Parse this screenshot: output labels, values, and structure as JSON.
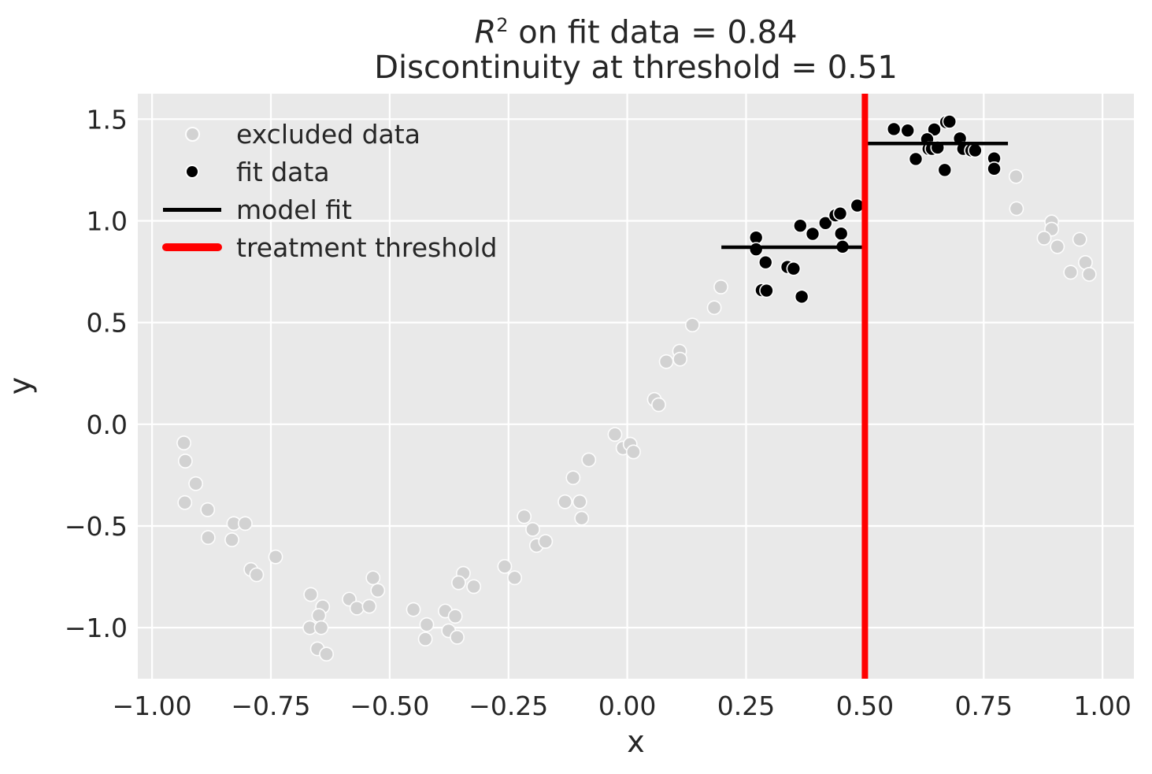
{
  "title": {
    "r_symbol": "R",
    "r_sup": "2",
    "line1_rest": " on fit data = 0.84",
    "line2": "Discontinuity at threshold = 0.51"
  },
  "axes": {
    "xlabel": "x",
    "ylabel": "y"
  },
  "legend": {
    "items": [
      {
        "label": "excluded data",
        "marker": "dot",
        "color": "#d2d2d2"
      },
      {
        "label": "fit data",
        "marker": "dot",
        "color": "#000000"
      },
      {
        "label": "model fit",
        "marker": "line",
        "color": "#000000"
      },
      {
        "label": "treatment threshold",
        "marker": "thick-line",
        "color": "#ff0000"
      }
    ],
    "position": "upper left"
  },
  "colors": {
    "figure_bg": "#ffffff",
    "plot_bg": "#e9e9e9",
    "grid": "#ffffff",
    "text": "#262626",
    "excluded": "#d2d2d2",
    "fit": "#000000",
    "model_fit": "#000000",
    "threshold": "#ff0000",
    "marker_edge": "#fdfdfd"
  },
  "chart_data": {
    "type": "scatter",
    "title": "R^2 on fit data = 0.84\nDiscontinuity at threshold = 0.51",
    "xlabel": "x",
    "ylabel": "y",
    "xlim": [
      -1.03,
      1.066
    ],
    "ylim": [
      -1.251,
      1.625
    ],
    "grid": true,
    "legend_position": "upper left",
    "x_ticks": {
      "values": [
        -1.0,
        -0.75,
        -0.5,
        -0.25,
        0.0,
        0.25,
        0.5,
        0.75,
        1.0
      ],
      "labels": [
        "−1.00",
        "−0.75",
        "−0.50",
        "−0.25",
        "0.00",
        "0.25",
        "0.50",
        "0.75",
        "1.00"
      ]
    },
    "y_ticks": {
      "values": [
        1.5,
        1.0,
        0.5,
        0.0,
        -0.5,
        -1.0
      ],
      "labels": [
        "1.5",
        "1.0",
        "0.5",
        "0.0",
        "−0.5",
        "−1.0"
      ]
    },
    "annotations": {
      "r2_on_fit_data": 0.84,
      "discontinuity_at_threshold": 0.51
    },
    "series": [
      {
        "name": "excluded data",
        "kind": "scatter",
        "color": "#d2d2d2",
        "edge_color": "#fdfdfd",
        "marker_radius": 8.6,
        "points": [
          [
            -0.933,
            -0.092
          ],
          [
            -0.93,
            -0.181
          ],
          [
            -0.908,
            -0.292
          ],
          [
            -0.931,
            -0.385
          ],
          [
            -0.883,
            -0.42
          ],
          [
            -0.828,
            -0.488
          ],
          [
            -0.804,
            -0.488
          ],
          [
            -0.882,
            -0.557
          ],
          [
            -0.832,
            -0.568
          ],
          [
            -0.74,
            -0.652
          ],
          [
            -0.792,
            -0.714
          ],
          [
            -0.78,
            -0.74
          ],
          [
            -0.666,
            -0.837
          ],
          [
            -0.641,
            -0.897
          ],
          [
            -0.649,
            -0.94
          ],
          [
            -0.668,
            -1.0
          ],
          [
            -0.644,
            -1.0
          ],
          [
            -0.652,
            -1.104
          ],
          [
            -0.633,
            -1.13
          ],
          [
            -0.585,
            -0.86
          ],
          [
            -0.569,
            -0.904
          ],
          [
            -0.535,
            -0.755
          ],
          [
            -0.525,
            -0.817
          ],
          [
            -0.543,
            -0.895
          ],
          [
            -0.45,
            -0.911
          ],
          [
            -0.422,
            -0.985
          ],
          [
            -0.425,
            -1.056
          ],
          [
            -0.383,
            -0.918
          ],
          [
            -0.362,
            -0.944
          ],
          [
            -0.376,
            -1.015
          ],
          [
            -0.358,
            -1.047
          ],
          [
            -0.345,
            -0.733
          ],
          [
            -0.355,
            -0.779
          ],
          [
            -0.323,
            -0.798
          ],
          [
            -0.258,
            -0.699
          ],
          [
            -0.237,
            -0.755
          ],
          [
            -0.217,
            -0.454
          ],
          [
            -0.199,
            -0.517
          ],
          [
            -0.191,
            -0.596
          ],
          [
            -0.172,
            -0.576
          ],
          [
            -0.114,
            -0.263
          ],
          [
            -0.131,
            -0.381
          ],
          [
            -0.1,
            -0.381
          ],
          [
            -0.096,
            -0.462
          ],
          [
            -0.081,
            -0.175
          ],
          [
            -0.026,
            -0.05
          ],
          [
            -0.009,
            -0.117
          ],
          [
            0.006,
            -0.098
          ],
          [
            0.013,
            -0.136
          ],
          [
            0.057,
            0.122
          ],
          [
            0.066,
            0.096
          ],
          [
            0.082,
            0.308
          ],
          [
            0.11,
            0.359
          ],
          [
            0.111,
            0.32
          ],
          [
            0.137,
            0.488
          ],
          [
            0.183,
            0.573
          ],
          [
            0.197,
            0.675
          ],
          [
            0.818,
            1.218
          ],
          [
            0.819,
            1.06
          ],
          [
            0.893,
            0.995
          ],
          [
            0.893,
            0.959
          ],
          [
            0.877,
            0.915
          ],
          [
            0.905,
            0.873
          ],
          [
            0.952,
            0.909
          ],
          [
            0.964,
            0.795
          ],
          [
            0.933,
            0.747
          ],
          [
            0.972,
            0.737
          ]
        ]
      },
      {
        "name": "fit data",
        "kind": "scatter",
        "color": "#000000",
        "edge_color": "#fdfdfd",
        "marker_radius": 8.5,
        "points": [
          [
            0.271,
            0.918
          ],
          [
            0.271,
            0.86
          ],
          [
            0.291,
            0.796
          ],
          [
            0.283,
            0.659
          ],
          [
            0.293,
            0.657
          ],
          [
            0.337,
            0.773
          ],
          [
            0.35,
            0.765
          ],
          [
            0.364,
            0.976
          ],
          [
            0.367,
            0.627
          ],
          [
            0.39,
            0.936
          ],
          [
            0.417,
            0.989
          ],
          [
            0.438,
            1.027
          ],
          [
            0.448,
            1.036
          ],
          [
            0.45,
            0.937
          ],
          [
            0.453,
            0.873
          ],
          [
            0.484,
            1.075
          ],
          [
            0.561,
            1.451
          ],
          [
            0.59,
            1.444
          ],
          [
            0.646,
            1.449
          ],
          [
            0.671,
            1.485
          ],
          [
            0.678,
            1.488
          ],
          [
            0.631,
            1.401
          ],
          [
            0.634,
            1.354
          ],
          [
            0.641,
            1.354
          ],
          [
            0.653,
            1.36
          ],
          [
            0.7,
            1.405
          ],
          [
            0.707,
            1.354
          ],
          [
            0.724,
            1.346
          ],
          [
            0.732,
            1.346
          ],
          [
            0.607,
            1.304
          ],
          [
            0.668,
            1.25
          ],
          [
            0.772,
            1.307
          ],
          [
            0.772,
            1.256
          ]
        ]
      },
      {
        "name": "model fit",
        "kind": "line-segments",
        "color": "#000000",
        "line_width": 4.5,
        "segments": [
          {
            "x_start": 0.198,
            "x_end": 0.5,
            "y": 0.87
          },
          {
            "x_start": 0.5,
            "x_end": 0.801,
            "y": 1.38
          }
        ]
      },
      {
        "name": "treatment threshold",
        "kind": "vline",
        "color": "#ff0000",
        "line_width": 8,
        "x": 0.5
      }
    ]
  }
}
